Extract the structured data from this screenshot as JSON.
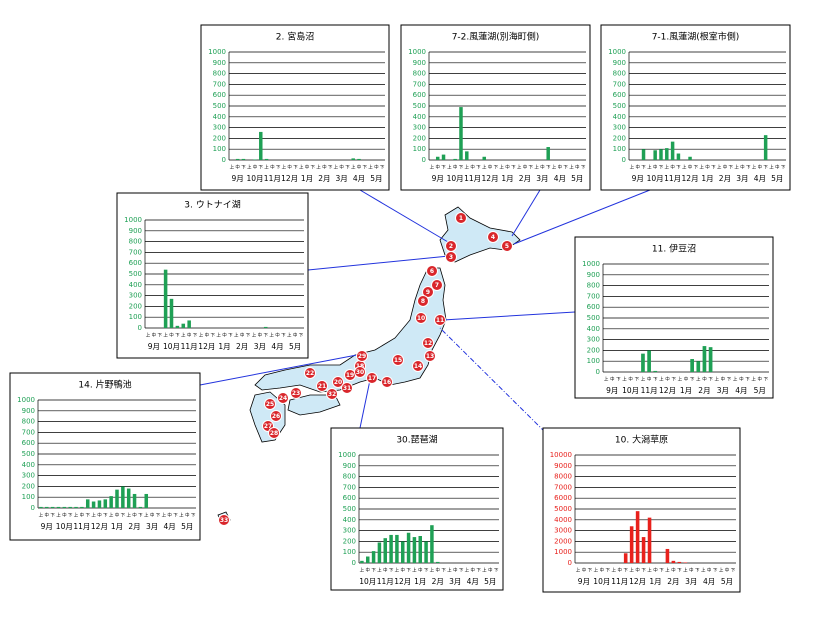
{
  "chart_data": [
    {
      "type": "bar",
      "title": "2. 宮島沼",
      "color": "#1fa055",
      "categories": [
        "上",
        "中",
        "下",
        "上",
        "中",
        "下",
        "上",
        "中",
        "下",
        "上",
        "中",
        "下",
        "上",
        "中",
        "下",
        "上",
        "中",
        "下",
        "上",
        "中",
        "下",
        "上",
        "中",
        "下",
        "上",
        "中",
        "下"
      ],
      "months": [
        "9月",
        "10月",
        "11月",
        "12月",
        "1月",
        "2月",
        "3月",
        "4月",
        "5月"
      ],
      "values": [
        0,
        10,
        10,
        0,
        5,
        260,
        10,
        0,
        0,
        0,
        0,
        0,
        0,
        0,
        0,
        0,
        0,
        0,
        0,
        0,
        0,
        15,
        10,
        0,
        0,
        0,
        0
      ],
      "ylim": [
        0,
        1000
      ],
      "yticks": [
        0,
        100,
        200,
        300,
        400,
        500,
        600,
        700,
        800,
        900,
        1000
      ],
      "grid": true
    },
    {
      "type": "bar",
      "title": "7-2.風蓮湖(別海町側)",
      "color": "#1fa055",
      "categories": [
        "上",
        "中",
        "下",
        "上",
        "中",
        "下",
        "上",
        "中",
        "下",
        "上",
        "中",
        "下",
        "上",
        "中",
        "下",
        "上",
        "中",
        "下",
        "上",
        "中",
        "下",
        "上",
        "中",
        "下",
        "上",
        "中",
        "下"
      ],
      "months": [
        "9月",
        "10月",
        "11月",
        "12月",
        "1月",
        "2月",
        "3月",
        "4月",
        "5月"
      ],
      "values": [
        0,
        30,
        50,
        0,
        10,
        490,
        80,
        0,
        0,
        30,
        0,
        0,
        0,
        0,
        0,
        0,
        0,
        0,
        0,
        0,
        120,
        0,
        0,
        0,
        0,
        0,
        0
      ],
      "ylim": [
        0,
        1000
      ],
      "yticks": [
        0,
        100,
        200,
        300,
        400,
        500,
        600,
        700,
        800,
        900,
        1000
      ],
      "grid": true
    },
    {
      "type": "bar",
      "title": "7-1.風蓮湖(根室市側)",
      "color": "#1fa055",
      "categories": [
        "上",
        "中",
        "下",
        "上",
        "中",
        "下",
        "上",
        "中",
        "下",
        "上",
        "中",
        "下",
        "上",
        "中",
        "下",
        "上",
        "中",
        "下",
        "上",
        "中",
        "下",
        "上",
        "中",
        "下",
        "上",
        "中",
        "下"
      ],
      "months": [
        "9月",
        "10月",
        "11月",
        "12月",
        "1月",
        "2月",
        "3月",
        "4月",
        "5月"
      ],
      "values": [
        0,
        0,
        100,
        0,
        90,
        100,
        110,
        170,
        60,
        0,
        30,
        0,
        0,
        0,
        0,
        0,
        0,
        0,
        0,
        0,
        0,
        0,
        0,
        230,
        0,
        0,
        0
      ],
      "ylim": [
        0,
        1000
      ],
      "yticks": [
        0,
        100,
        200,
        300,
        400,
        500,
        600,
        700,
        800,
        900,
        1000
      ],
      "grid": true
    },
    {
      "type": "bar",
      "title": "3. ウトナイ湖",
      "color": "#1fa055",
      "categories": [
        "上",
        "中",
        "下",
        "上",
        "中",
        "下",
        "上",
        "中",
        "下",
        "上",
        "中",
        "下",
        "上",
        "中",
        "下",
        "上",
        "中",
        "下",
        "上",
        "中",
        "下",
        "上",
        "中",
        "下",
        "上",
        "中",
        "下"
      ],
      "months": [
        "9月",
        "10月",
        "11月",
        "12月",
        "1月",
        "2月",
        "3月",
        "4月",
        "5月"
      ],
      "values": [
        0,
        0,
        0,
        540,
        270,
        20,
        40,
        70,
        0,
        0,
        0,
        0,
        0,
        0,
        0,
        0,
        0,
        0,
        0,
        0,
        10,
        0,
        0,
        0,
        0,
        0,
        0
      ],
      "ylim": [
        0,
        1000
      ],
      "yticks": [
        0,
        100,
        200,
        300,
        400,
        500,
        600,
        700,
        800,
        900,
        1000
      ],
      "grid": true
    },
    {
      "type": "bar",
      "title": "11. 伊豆沼",
      "color": "#1fa055",
      "categories": [
        "上",
        "中",
        "下",
        "上",
        "中",
        "下",
        "上",
        "中",
        "下",
        "上",
        "中",
        "下",
        "上",
        "中",
        "下",
        "上",
        "中",
        "下",
        "上",
        "中",
        "下",
        "上",
        "中",
        "下",
        "上",
        "中",
        "下"
      ],
      "months": [
        "9月",
        "10月",
        "11月",
        "12月",
        "1月",
        "2月",
        "3月",
        "4月",
        "5月"
      ],
      "values": [
        0,
        0,
        0,
        0,
        0,
        0,
        170,
        200,
        10,
        0,
        0,
        0,
        0,
        0,
        120,
        100,
        240,
        230,
        0,
        0,
        0,
        0,
        0,
        0,
        0,
        0,
        0
      ],
      "ylim": [
        0,
        1000
      ],
      "yticks": [
        0,
        100,
        200,
        300,
        400,
        500,
        600,
        700,
        800,
        900,
        1000
      ],
      "grid": true
    },
    {
      "type": "bar",
      "title": "14. 片野鴨池",
      "color": "#1fa055",
      "categories": [
        "上",
        "中",
        "下",
        "上",
        "中",
        "下",
        "上",
        "中",
        "下",
        "上",
        "中",
        "下",
        "上",
        "中",
        "下",
        "上",
        "中",
        "下",
        "上",
        "中",
        "下",
        "上",
        "中",
        "下",
        "上",
        "中",
        "下"
      ],
      "months": [
        "9月",
        "10月",
        "11月",
        "12月",
        "1月",
        "2月",
        "3月",
        "4月",
        "5月"
      ],
      "values": [
        10,
        10,
        10,
        10,
        10,
        10,
        10,
        10,
        80,
        60,
        70,
        80,
        110,
        170,
        200,
        180,
        130,
        10,
        130,
        0,
        0,
        0,
        0,
        0,
        0,
        0,
        0
      ],
      "ylim": [
        0,
        1000
      ],
      "yticks": [
        0,
        100,
        200,
        300,
        400,
        500,
        600,
        700,
        800,
        900,
        1000
      ],
      "grid": true
    },
    {
      "type": "bar",
      "title": "30.琵琶湖",
      "color": "#1fa055",
      "categories": [
        "上",
        "中",
        "下",
        "上",
        "中",
        "下",
        "上",
        "中",
        "下",
        "上",
        "中",
        "下",
        "上",
        "中",
        "下",
        "上",
        "中",
        "下",
        "上",
        "中",
        "下",
        "上",
        "中",
        "下"
      ],
      "months": [
        "10月",
        "11月",
        "12月",
        "1月",
        "2月",
        "3月",
        "4月",
        "5月"
      ],
      "values": [
        20,
        60,
        110,
        190,
        230,
        260,
        260,
        200,
        280,
        240,
        250,
        200,
        350,
        10,
        0,
        0,
        0,
        0,
        0,
        0,
        0,
        0,
        0,
        0
      ],
      "ylim": [
        0,
        1000
      ],
      "yticks": [
        0,
        100,
        200,
        300,
        400,
        500,
        600,
        700,
        800,
        900,
        1000
      ],
      "grid": true
    },
    {
      "type": "bar",
      "title": "10. 大潟草原",
      "color": "#e8211c",
      "categories": [
        "上",
        "中",
        "下",
        "上",
        "中",
        "下",
        "上",
        "中",
        "下",
        "上",
        "中",
        "下",
        "上",
        "中",
        "下",
        "上",
        "中",
        "下",
        "上",
        "中",
        "下",
        "上",
        "中",
        "下",
        "上",
        "中",
        "下"
      ],
      "months": [
        "9月",
        "10月",
        "11月",
        "12月",
        "1月",
        "2月",
        "3月",
        "4月",
        "5月"
      ],
      "values": [
        0,
        0,
        0,
        0,
        0,
        0,
        0,
        0,
        900,
        3400,
        4800,
        2400,
        4200,
        0,
        0,
        1300,
        200,
        100,
        50,
        0,
        0,
        0,
        0,
        0,
        0,
        0,
        0
      ],
      "ylim": [
        0,
        10000
      ],
      "yticks": [
        0,
        1000,
        2000,
        3000,
        4000,
        5000,
        6000,
        7000,
        8000,
        9000,
        10000
      ],
      "grid": true
    }
  ],
  "map": {
    "markers": [
      "1",
      "4",
      "2",
      "5",
      "3",
      "6",
      "7",
      "9",
      "8",
      "10",
      "11",
      "12",
      "13",
      "14",
      "15",
      "16",
      "17",
      "18",
      "19",
      "20",
      "21",
      "22",
      "23",
      "24",
      "25",
      "26",
      "27",
      "28",
      "29",
      "30",
      "31",
      "32",
      "33"
    ]
  }
}
